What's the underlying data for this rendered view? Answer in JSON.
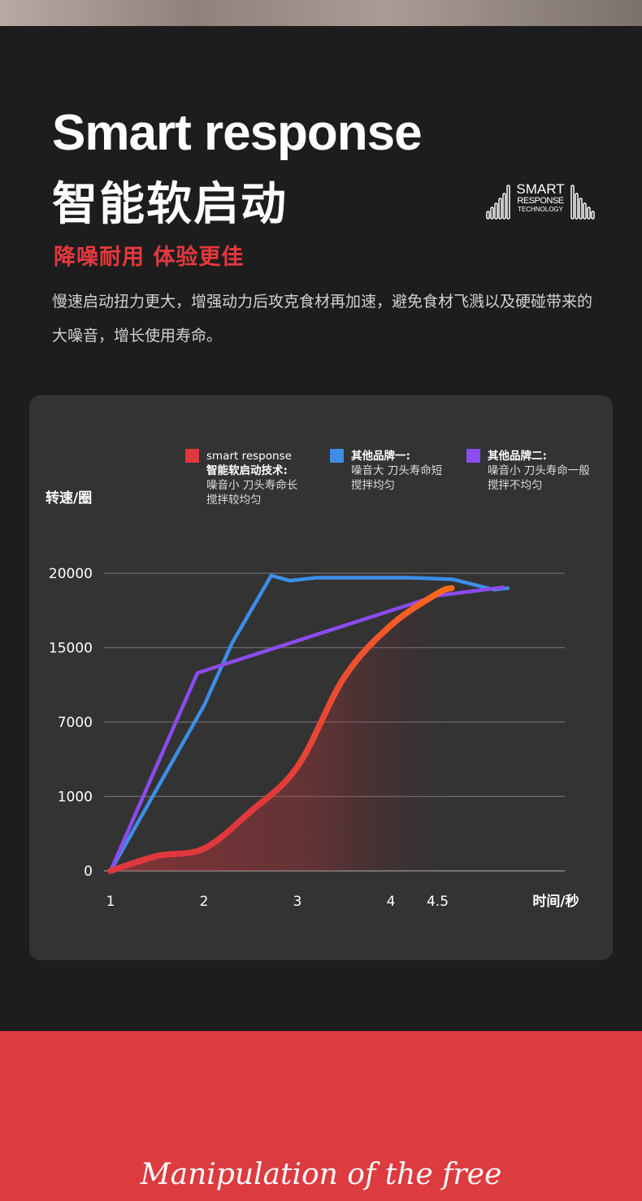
{
  "header": {
    "title_en": "Smart response",
    "title_zh": "智能软启动",
    "subtitle": "降噪耐用  体验更佳",
    "description": "慢速启动扭力更大，增强动力后攻克食材再加速，避免食材飞溅以及硬碰带来的大噪音，增长使用寿命。"
  },
  "logo": {
    "line1": "SMART",
    "line2": "RESPONSE",
    "line3": "TECHNOLOGY"
  },
  "footer": {
    "slogan": "Manipulation of the free"
  },
  "colors": {
    "background": "#1d1d1d",
    "panel": "#333333",
    "accent_red": "#dc3c3f",
    "series_smart_start": "#e0383d",
    "series_smart_end": "#ff6a1a",
    "series_brand1": "#3c8ee6",
    "series_brand2": "#8b4cf0"
  },
  "chart_data": {
    "type": "line",
    "ylabel": "转速/圈",
    "xlabel": "时间/秒",
    "x_ticks": [
      "1",
      "2",
      "3",
      "4",
      "4.5"
    ],
    "y_ticks": [
      "0",
      "1000",
      "7000",
      "15000",
      "20000"
    ],
    "grid": true,
    "legend_position": "top",
    "series": [
      {
        "legend_title": "smart response",
        "legend_lines": [
          "智能软启动技术:",
          "噪音小 刀头寿命长",
          "搅拌较均匀"
        ],
        "color": "#e0383d",
        "smooth": true,
        "points": [
          [
            1,
            0
          ],
          [
            1.5,
            0.2
          ],
          [
            2,
            0.3
          ],
          [
            2.5,
            0.8
          ],
          [
            3,
            1.4
          ],
          [
            3.5,
            2.6
          ],
          [
            4,
            3.3
          ],
          [
            4.5,
            3.73
          ],
          [
            4.65,
            3.8
          ]
        ]
      },
      {
        "legend_title": "其他品牌一:",
        "legend_lines": [
          "噪音大 刀头寿命短",
          "搅拌均匀"
        ],
        "color": "#3c8ee6",
        "smooth": false,
        "points": [
          [
            1,
            0
          ],
          [
            2,
            2.22
          ],
          [
            2.3,
            3.06
          ],
          [
            2.72,
            3.97
          ],
          [
            2.92,
            3.9
          ],
          [
            3.2,
            3.94
          ],
          [
            4.2,
            3.94
          ],
          [
            4.66,
            3.92
          ],
          [
            5.1,
            3.78
          ],
          [
            5.25,
            3.8
          ]
        ]
      },
      {
        "legend_title": "其他品牌二:",
        "legend_lines": [
          "噪音小 刀头寿命一般",
          "搅拌不均匀"
        ],
        "color": "#8b4cf0",
        "smooth": false,
        "points": [
          [
            1,
            0
          ],
          [
            1.93,
            2.66
          ],
          [
            4.5,
            3.7
          ],
          [
            5.2,
            3.81
          ]
        ]
      }
    ],
    "note": "y values are positions on the categorical tick scale (0=0, 1=1000, 2=7000, 3=15000, 4=20000); x values on the linear tick scale 1..4.5"
  }
}
